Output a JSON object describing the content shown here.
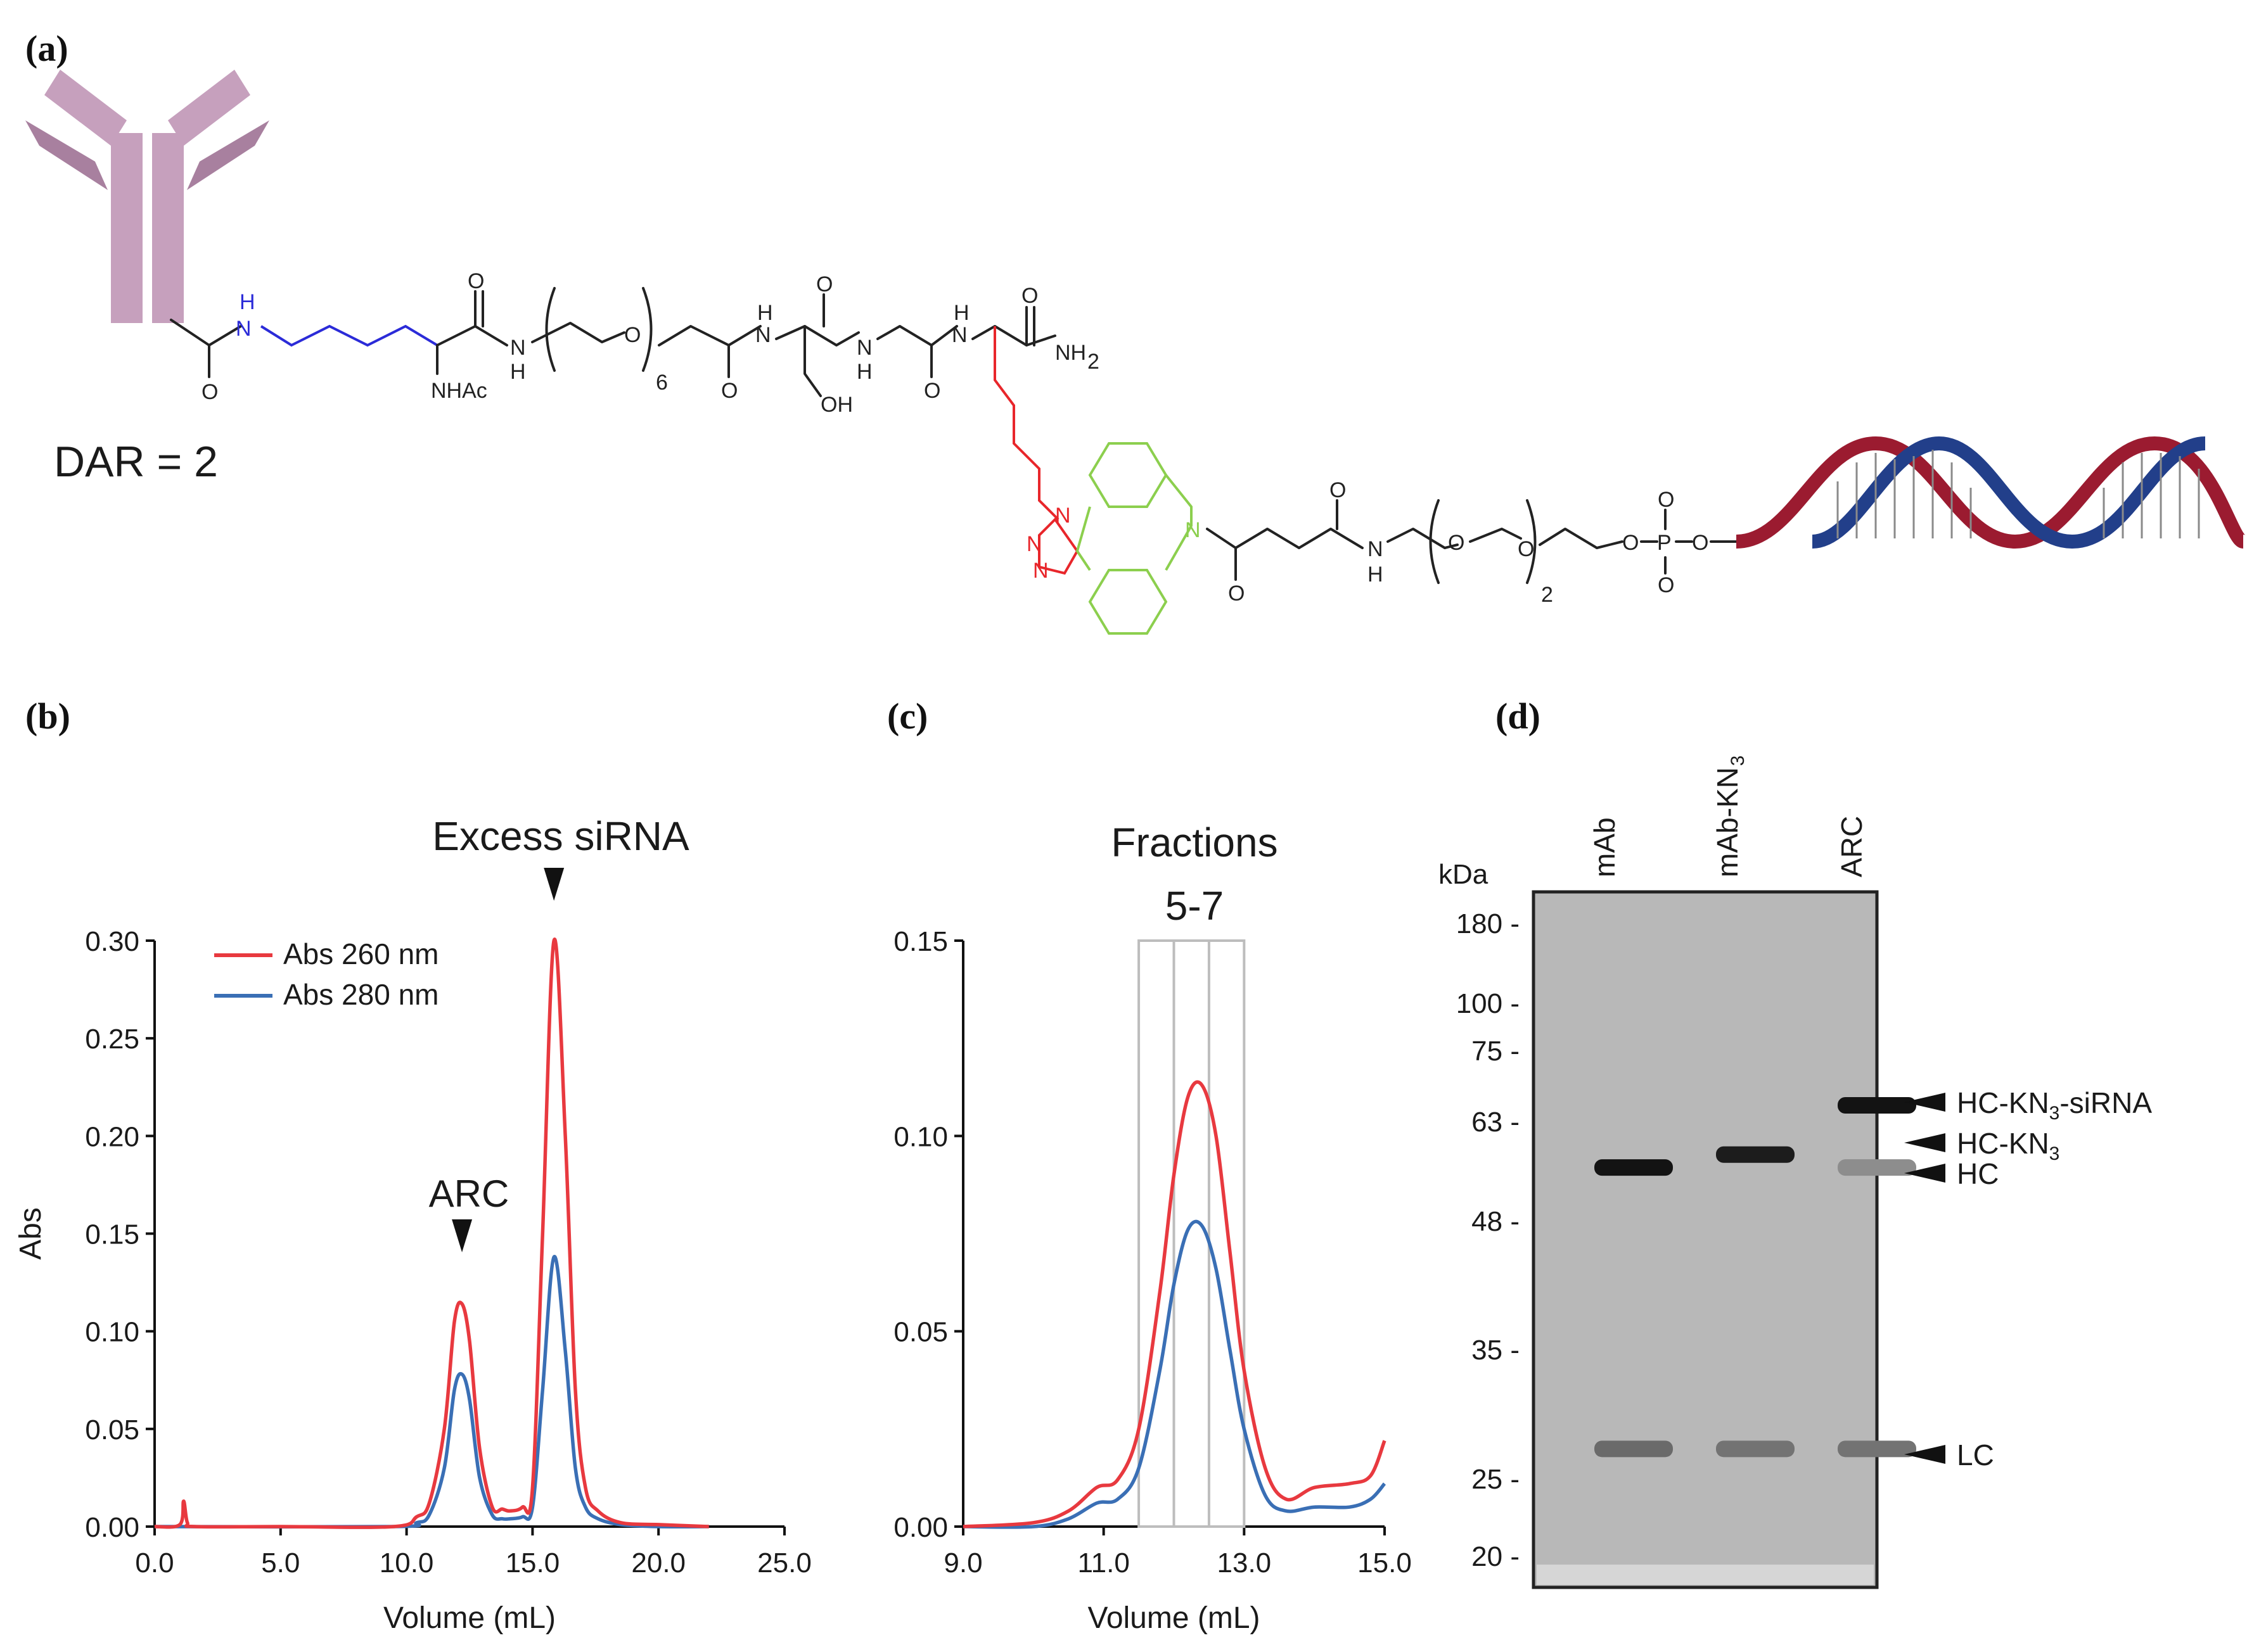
{
  "panels": [
    "(a)",
    "(b)",
    "(c)",
    "(d)"
  ],
  "scheme": {
    "dar_label": "DAR = 2",
    "atoms": {
      "nh": "H",
      "n": "N",
      "o": "O",
      "nhac": "NHAc",
      "h": "H",
      "oh": "OH",
      "nh2": "NH",
      "sub2": "2",
      "sub6": "6",
      "p": "P"
    },
    "colors": {
      "antibody": "#c6a0bd",
      "antibody_dark": "#a8809f",
      "lysine": "#2b2bd8",
      "azide_linker": "#e8262b",
      "dbco": "#8ccf4e",
      "rna_red": "#9b1b30",
      "rna_blue": "#223f8a"
    }
  },
  "chart_b": {
    "annotations": [
      "Excess siRNA",
      "ARC"
    ],
    "legend": [
      {
        "name": "Abs 260 nm",
        "color": "#e8393f"
      },
      {
        "name": "Abs 280 nm",
        "color": "#3a6fb5"
      }
    ]
  },
  "chart_c": {
    "annotation_line1": "Fractions",
    "annotation_line2": "5-7"
  },
  "gel": {
    "unit": "kDa",
    "lanes": [
      "mAb",
      "mAb-KN3",
      "ARC"
    ],
    "band_labels": [
      "HC-KN3-siRNA",
      "HC-KN3",
      "HC",
      "LC"
    ]
  },
  "chart_data": [
    {
      "type": "line",
      "panel": "(b)",
      "xlabel": "Volume (mL)",
      "ylabel": "Abs",
      "xlim": [
        0.0,
        25.0
      ],
      "ylim": [
        0.0,
        0.3
      ],
      "x_ticks": [
        "0.0",
        "5.0",
        "10.0",
        "15.0",
        "20.0",
        "25.0"
      ],
      "y_ticks": [
        "0.00",
        "0.05",
        "0.10",
        "0.15",
        "0.20",
        "0.25",
        "0.30"
      ],
      "legend_position": "top-left",
      "grid": false,
      "series": [
        {
          "name": "Abs 260 nm",
          "color": "#e8393f",
          "x": [
            0.0,
            1.0,
            1.15,
            1.3,
            1.6,
            5.0,
            9.5,
            10.4,
            10.9,
            11.5,
            11.9,
            12.2,
            12.5,
            12.9,
            13.4,
            13.8,
            14.1,
            14.6,
            15.0,
            15.4,
            15.85,
            16.3,
            16.7,
            17.1,
            17.6,
            18.5,
            20.0,
            22.0
          ],
          "y": [
            0.0,
            0.001,
            0.013,
            0.002,
            0.0,
            0.0,
            0.0,
            0.005,
            0.012,
            0.05,
            0.105,
            0.114,
            0.095,
            0.04,
            0.01,
            0.009,
            0.008,
            0.01,
            0.02,
            0.15,
            0.3,
            0.2,
            0.07,
            0.02,
            0.008,
            0.002,
            0.001,
            0.0
          ]
        },
        {
          "name": "Abs 280 nm",
          "color": "#3a6fb5",
          "x": [
            0.0,
            9.5,
            10.4,
            10.9,
            11.5,
            11.9,
            12.2,
            12.5,
            12.9,
            13.4,
            13.8,
            14.1,
            14.6,
            15.0,
            15.4,
            15.85,
            16.3,
            16.7,
            17.1,
            17.6,
            18.5,
            20.0,
            22.0
          ],
          "y": [
            0.0,
            0.0,
            0.002,
            0.006,
            0.03,
            0.07,
            0.078,
            0.065,
            0.025,
            0.006,
            0.004,
            0.004,
            0.005,
            0.01,
            0.07,
            0.138,
            0.09,
            0.03,
            0.01,
            0.004,
            0.001,
            0.0,
            0.0
          ]
        }
      ],
      "annotations": [
        {
          "text": "ARC",
          "x": 12.2
        },
        {
          "text": "Excess siRNA",
          "x": 15.85
        }
      ]
    },
    {
      "type": "line",
      "panel": "(c)",
      "xlabel": "Volume (mL)",
      "ylabel": "",
      "xlim": [
        9.0,
        15.0
      ],
      "ylim": [
        0.0,
        0.15
      ],
      "x_ticks": [
        "9.0",
        "11.0",
        "13.0",
        "15.0"
      ],
      "y_ticks": [
        "0.00",
        "0.05",
        "0.10",
        "0.15"
      ],
      "fraction_boundaries": [
        11.5,
        12.0,
        12.5,
        13.0
      ],
      "series": [
        {
          "name": "Abs 260 nm",
          "color": "#e8393f",
          "x": [
            9.0,
            10.0,
            10.5,
            10.9,
            11.2,
            11.5,
            11.8,
            12.0,
            12.2,
            12.4,
            12.6,
            12.8,
            13.0,
            13.3,
            13.6,
            14.0,
            14.5,
            14.8,
            15.0
          ],
          "y": [
            0.0,
            0.001,
            0.004,
            0.01,
            0.012,
            0.025,
            0.06,
            0.09,
            0.11,
            0.113,
            0.1,
            0.07,
            0.04,
            0.015,
            0.007,
            0.01,
            0.011,
            0.013,
            0.022
          ]
        },
        {
          "name": "Abs 280 nm",
          "color": "#3a6fb5",
          "x": [
            9.0,
            10.0,
            10.5,
            10.9,
            11.2,
            11.5,
            11.8,
            12.0,
            12.2,
            12.4,
            12.6,
            12.8,
            13.0,
            13.3,
            13.6,
            14.0,
            14.5,
            14.8,
            15.0
          ],
          "y": [
            0.0,
            0.0,
            0.002,
            0.006,
            0.007,
            0.015,
            0.04,
            0.062,
            0.076,
            0.077,
            0.066,
            0.045,
            0.025,
            0.008,
            0.004,
            0.005,
            0.005,
            0.007,
            0.011
          ]
        }
      ]
    },
    {
      "type": "table",
      "panel": "(d)",
      "description_source": "SDS-PAGE gel",
      "columns": [
        "mAb",
        "mAb-KN3",
        "ARC"
      ],
      "marker_kda": [
        180,
        100,
        75,
        63,
        48,
        35,
        25,
        20
      ],
      "marker_labels": [
        "180 -",
        "100 -",
        "75 -",
        "63 -",
        "48 -",
        "35 -",
        "25 -",
        "20 -"
      ],
      "bands": [
        {
          "lane": "mAb",
          "kda": 55.5,
          "intensity": 0.95
        },
        {
          "lane": "mAb",
          "kda": 27,
          "intensity": 0.45
        },
        {
          "lane": "mAb-KN3",
          "kda": 57.5,
          "intensity": 0.9
        },
        {
          "lane": "mAb-KN3",
          "kda": 27,
          "intensity": 0.4
        },
        {
          "lane": "ARC",
          "kda": 65.5,
          "intensity": 0.95
        },
        {
          "lane": "ARC",
          "kda": 55.5,
          "intensity": 0.25
        },
        {
          "lane": "ARC",
          "kda": 27,
          "intensity": 0.4
        }
      ]
    }
  ]
}
